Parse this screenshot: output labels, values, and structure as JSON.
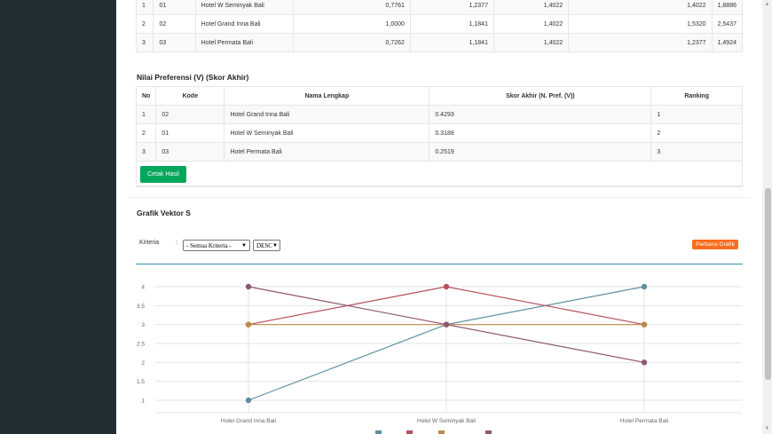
{
  "top_table": {
    "rows": [
      {
        "no": "1",
        "kode": "01",
        "nama": "Hotel W Seminyak Bali",
        "c1": "0,7761",
        "c2": "1,2377",
        "c3": "1,4022",
        "c4": "1,4022",
        "c5": "1,8886"
      },
      {
        "no": "2",
        "kode": "02",
        "nama": "Hotel Grand Inna Bali",
        "c1": "1,0000",
        "c2": "1,1841",
        "c3": "1,4022",
        "c4": "1,5320",
        "c5": "2,5437"
      },
      {
        "no": "3",
        "kode": "03",
        "nama": "Hotel Permata Bali",
        "c1": "0,7262",
        "c2": "1,1841",
        "c3": "1,4022",
        "c4": "1,2377",
        "c5": "1,4924"
      }
    ]
  },
  "preferensi": {
    "title": "Nilai Preferensi (V) (Skor Akhir)",
    "headers": {
      "no": "No",
      "kode": "Kode",
      "nama": "Nama Lengkap",
      "skor": "Skor Akhir (N. Pref. (V))",
      "ranking": "Ranking"
    },
    "rows": [
      {
        "no": "1",
        "kode": "02",
        "nama": "Hotel Grand Inna Bali",
        "skor": "0.4293",
        "ranking": "1"
      },
      {
        "no": "2",
        "kode": "01",
        "nama": "Hotel W Seminyak Bali",
        "skor": "0.3188",
        "ranking": "2"
      },
      {
        "no": "3",
        "kode": "03",
        "nama": "Hotel Permata Bali",
        "skor": "0.2519",
        "ranking": "3"
      }
    ],
    "button_label": "Cetak Hasil"
  },
  "grafik": {
    "title": "Grafik Vektor S",
    "kriteria_label": "Kriteria",
    "colon": ":",
    "kriteria_select_value": "- Semua Kriteria -",
    "order_select_value": "DESC",
    "refresh_button": "Perbarui Grafik"
  },
  "scrollbar": {
    "up_icon": "triangle-up-icon",
    "down_icon": "triangle-down-icon"
  },
  "chart_data": {
    "type": "line",
    "categories": [
      "Hotel Grand Inna Bali",
      "Hotel W Seminyak Bali",
      "Hotel Permata Bali"
    ],
    "y_ticks": [
      "1",
      "1.5",
      "2",
      "2.5",
      "3",
      "3.5",
      "4"
    ],
    "ylim": [
      1,
      4
    ],
    "grid": true,
    "legend_position": "bottom",
    "series": [
      {
        "color": "#5f8fa0",
        "values": [
          1,
          3,
          4
        ]
      },
      {
        "color": "#b84f5c",
        "values": [
          3,
          4,
          3
        ]
      },
      {
        "color": "#b88c4a",
        "values": [
          3,
          3,
          3
        ]
      },
      {
        "color": "#8e5674",
        "values": [
          4,
          3,
          2
        ]
      }
    ]
  }
}
